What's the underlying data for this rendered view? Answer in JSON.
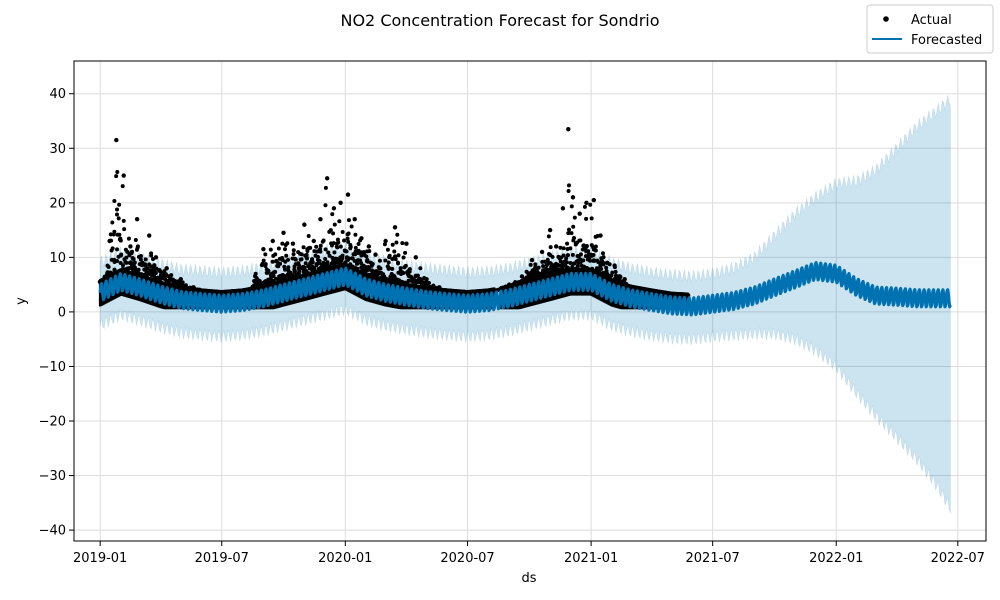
{
  "chart_data": {
    "type": "line",
    "title": "NO2 Concentration Forecast for Sondrio",
    "xlabel": "ds",
    "ylabel": "y",
    "xlim": [
      "2018-11-23",
      "2022-08-12"
    ],
    "ylim": [
      -42,
      46
    ],
    "grid": true,
    "legend": {
      "placement": "top-right",
      "entries": [
        {
          "name": "Actual",
          "marker": "dot",
          "color": "#000000"
        },
        {
          "name": "Forecasted",
          "marker": "line",
          "color": "#0072b2"
        }
      ]
    },
    "x_ticks": [
      "2019-01",
      "2019-07",
      "2020-01",
      "2020-07",
      "2021-01",
      "2021-07",
      "2022-01",
      "2022-07"
    ],
    "y_ticks": [
      -40,
      -30,
      -20,
      -10,
      0,
      10,
      20,
      30,
      40
    ],
    "colors": {
      "actual": "#000000",
      "forecast": "#0072b2",
      "interval": "#0072b2",
      "grid": "#dddddd"
    },
    "series": [
      {
        "name": "Forecasted",
        "x": [
          "2019-01-01",
          "2019-02-01",
          "2019-03-01",
          "2019-04-01",
          "2019-05-01",
          "2019-06-01",
          "2019-07-01",
          "2019-08-01",
          "2019-09-01",
          "2019-10-01",
          "2019-11-01",
          "2019-12-01",
          "2020-01-01",
          "2020-02-01",
          "2020-03-01",
          "2020-04-01",
          "2020-05-01",
          "2020-06-01",
          "2020-07-01",
          "2020-08-01",
          "2020-09-01",
          "2020-10-01",
          "2020-11-01",
          "2020-12-01",
          "2021-01-01",
          "2021-02-01",
          "2021-03-01",
          "2021-04-01",
          "2021-05-01",
          "2021-06-01",
          "2021-07-01",
          "2021-08-01",
          "2021-09-01",
          "2021-10-01",
          "2021-11-01",
          "2021-12-01",
          "2022-01-01",
          "2022-02-01",
          "2022-03-01",
          "2022-04-01",
          "2022-05-01",
          "2022-06-01",
          "2022-06-20"
        ],
        "values": [
          3.5,
          5.5,
          4.5,
          3.2,
          2.2,
          1.8,
          1.5,
          1.8,
          2.5,
          3.5,
          4.5,
          5.5,
          6.5,
          4.5,
          3.5,
          2.8,
          2.2,
          1.8,
          1.5,
          1.8,
          2.5,
          3.5,
          4.5,
          5.5,
          5.5,
          3.5,
          2.5,
          1.8,
          1.2,
          1.0,
          1.5,
          2.0,
          3.0,
          4.5,
          6.0,
          7.5,
          7.0,
          4.5,
          3.0,
          2.8,
          2.5,
          2.5,
          2.5
        ],
        "lower": [
          -2.5,
          -0.5,
          -1.5,
          -2.8,
          -3.8,
          -4.2,
          -4.5,
          -4.2,
          -3.5,
          -2.5,
          -1.5,
          -0.5,
          0.5,
          -1.5,
          -2.5,
          -3.2,
          -3.8,
          -4.2,
          -4.5,
          -4.2,
          -3.5,
          -2.5,
          -1.5,
          -0.5,
          -0.5,
          -2.5,
          -3.5,
          -4.3,
          -4.8,
          -5.0,
          -4.5,
          -4.2,
          -4.0,
          -4.0,
          -5.0,
          -7.0,
          -10.0,
          -15.0,
          -19.0,
          -23.0,
          -27.0,
          -32.0,
          -36.0
        ],
        "upper": [
          9.0,
          11.0,
          10.0,
          8.8,
          7.8,
          7.5,
          7.2,
          7.5,
          8.2,
          9.2,
          10.2,
          11.2,
          12.0,
          10.2,
          9.2,
          8.5,
          8.0,
          7.6,
          7.2,
          7.4,
          8.0,
          9.0,
          10.0,
          11.0,
          11.0,
          9.0,
          8.0,
          7.2,
          6.8,
          6.5,
          7.0,
          8.0,
          10.0,
          14.0,
          18.0,
          21.0,
          23.5,
          24.0,
          26.0,
          30.0,
          34.0,
          37.0,
          39.0
        ]
      },
      {
        "name": "Actual",
        "x": [
          "2019-01-05",
          "2019-01-15",
          "2019-01-25",
          "2019-02-05",
          "2019-02-15",
          "2019-02-25",
          "2019-03-05",
          "2019-03-15",
          "2019-03-25",
          "2019-04-10",
          "2019-05-01",
          "2019-05-20",
          "2019-06-10",
          "2019-07-01",
          "2019-07-20",
          "2019-08-10",
          "2019-09-01",
          "2019-09-15",
          "2019-10-01",
          "2019-10-15",
          "2019-11-01",
          "2019-11-15",
          "2019-11-25",
          "2019-12-05",
          "2019-12-15",
          "2019-12-25",
          "2020-01-05",
          "2020-01-15",
          "2020-01-25",
          "2020-02-05",
          "2020-02-15",
          "2020-03-01",
          "2020-03-15",
          "2020-04-01",
          "2020-04-15",
          "2020-05-01",
          "2020-05-20",
          "2020-06-10",
          "2020-07-01",
          "2020-07-20",
          "2020-08-15",
          "2020-09-01",
          "2020-09-20",
          "2020-10-05",
          "2020-10-20",
          "2020-11-01",
          "2020-11-10",
          "2020-11-20",
          "2020-11-28",
          "2020-12-05",
          "2020-12-15",
          "2020-12-25",
          "2021-01-05",
          "2021-01-15",
          "2021-01-25",
          "2021-02-05",
          "2021-02-20",
          "2021-03-05",
          "2021-03-20",
          "2021-04-10",
          "2021-05-01",
          "2021-05-20"
        ],
        "values": [
          5.5,
          13.0,
          31.5,
          25.0,
          12.0,
          17.0,
          9.0,
          14.0,
          10.0,
          8.0,
          6.0,
          4.5,
          3.5,
          3.2,
          3.0,
          3.5,
          11.5,
          13.0,
          14.5,
          12.5,
          16.0,
          13.0,
          17.0,
          24.5,
          19.0,
          20.0,
          21.5,
          17.0,
          13.5,
          12.0,
          10.5,
          13.0,
          15.5,
          12.5,
          10.0,
          6.0,
          4.5,
          3.5,
          3.0,
          3.2,
          4.0,
          5.0,
          6.5,
          9.5,
          11.0,
          15.0,
          12.0,
          19.0,
          33.5,
          21.0,
          18.0,
          20.0,
          20.5,
          14.0,
          9.0,
          8.5,
          6.0,
          4.0,
          3.0,
          2.5,
          2.5,
          2.0
        ]
      }
    ]
  }
}
